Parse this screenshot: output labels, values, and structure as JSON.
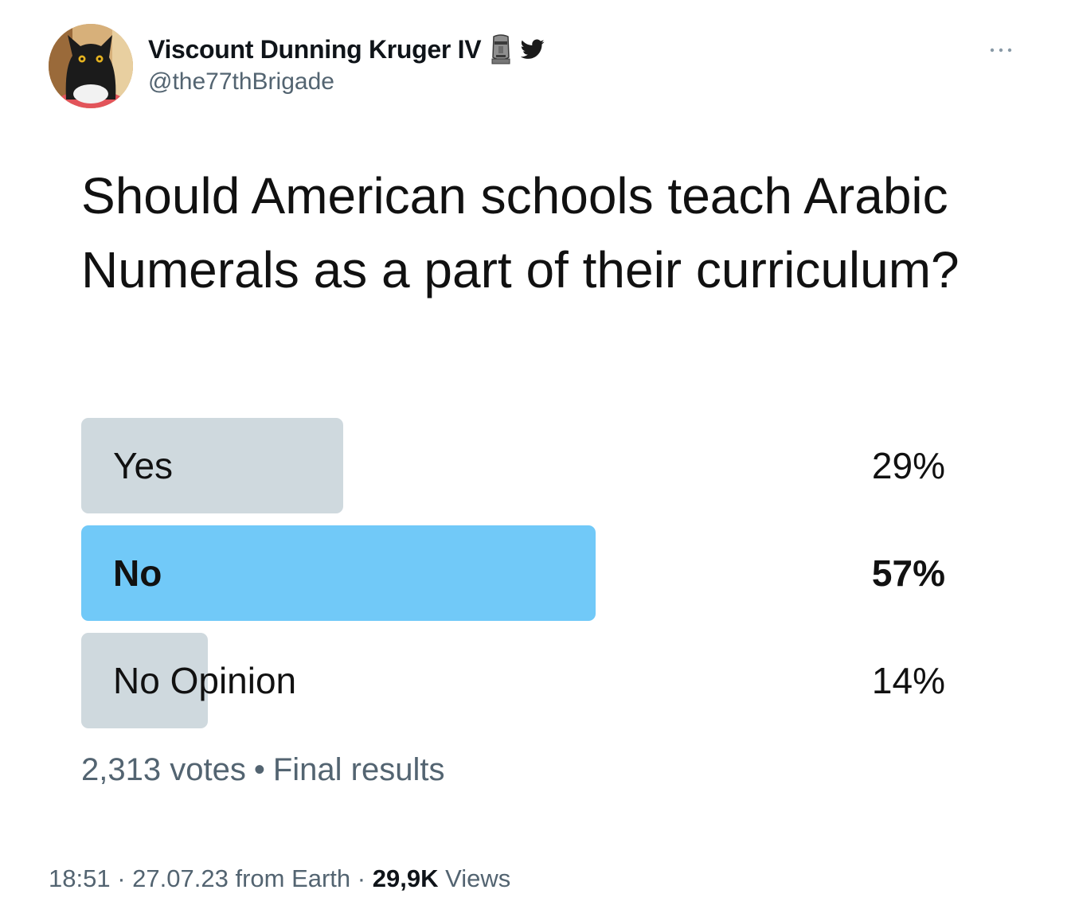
{
  "author": {
    "display_name": "Viscount Dunning Kruger IV",
    "handle": "@the77thBrigade",
    "badge_icon": "moai-icon",
    "platform_icon": "twitter-bird-icon"
  },
  "poll": {
    "question": "Should American schools teach Arabic Numerals as a part of their curriculum?",
    "options": [
      {
        "label": "Yes",
        "percent_text": "29%",
        "percent": 29,
        "winner": false
      },
      {
        "label": "No",
        "percent_text": "57%",
        "percent": 57,
        "winner": true
      },
      {
        "label": "No Opinion",
        "percent_text": "14%",
        "percent": 14,
        "winner": false
      }
    ],
    "votes": "2,313 votes",
    "separator": "•",
    "status": "Final results"
  },
  "meta": {
    "time": "18:51",
    "date": "27.07.23",
    "source": "from Earth",
    "views_count": "29,9K",
    "views_label": "Views",
    "separator": "·"
  },
  "colors": {
    "bar_default": "#cfd9de",
    "bar_winner": "#71c9f8",
    "secondary_text": "#536471"
  }
}
